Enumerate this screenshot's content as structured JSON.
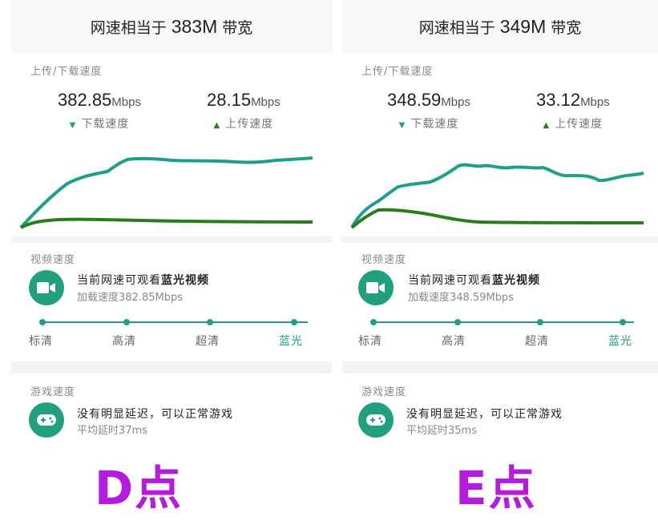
{
  "panels": [
    {
      "headline_prefix": "网速相当于",
      "headline_value": "383M",
      "headline_suffix": "带宽",
      "speed_title": "上传/下载速度",
      "download_value": "382.85",
      "upload_value": "28.15",
      "unit": "Mbps",
      "download_label": "下载速度",
      "upload_label": "上传速度",
      "video_title": "视频速度",
      "video_msg_prefix": "当前网速可观看",
      "video_msg_bold": "蓝光视频",
      "video_load": "加载速度382.85Mbps",
      "qualities": [
        "标清",
        "高清",
        "超清",
        "蓝光"
      ],
      "game_title": "游戏速度",
      "game_msg": "没有明显延迟，可以正常游戏",
      "game_latency": "平均延时37ms",
      "point_label": "D点"
    },
    {
      "headline_prefix": "网速相当于",
      "headline_value": "349M",
      "headline_suffix": "带宽",
      "speed_title": "上传/下载速度",
      "download_value": "348.59",
      "upload_value": "33.12",
      "unit": "Mbps",
      "download_label": "下载速度",
      "upload_label": "上传速度",
      "video_title": "视频速度",
      "video_msg_prefix": "当前网速可观看",
      "video_msg_bold": "蓝光视频",
      "video_load": "加载速度348.59Mbps",
      "qualities": [
        "标清",
        "高清",
        "超清",
        "蓝光"
      ],
      "game_title": "游戏速度",
      "game_msg": "没有明显延迟，可以正常游戏",
      "game_latency": "平均延时35ms",
      "point_label": "E点"
    }
  ],
  "icons": {
    "video": "video-camera-icon",
    "game": "gamepad-icon",
    "download_marker": "triangle-down-icon",
    "upload_marker": "triangle-up-icon"
  },
  "colors": {
    "accent": "#1f9e8a",
    "upload_line": "#2a7d1c",
    "icon_bg": "#21a080",
    "point_label": "#b51ae0"
  }
}
